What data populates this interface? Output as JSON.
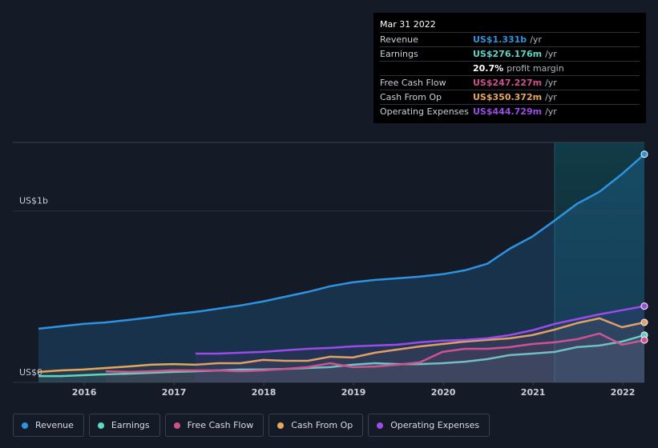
{
  "chart_data": {
    "type": "line",
    "x": [
      2015.49,
      2015.74,
      2015.99,
      2016.24,
      2016.49,
      2016.74,
      2016.99,
      2017.24,
      2017.49,
      2017.74,
      2017.99,
      2018.24,
      2018.49,
      2018.74,
      2018.99,
      2019.24,
      2019.49,
      2019.74,
      2019.99,
      2020.24,
      2020.49,
      2020.74,
      2020.99,
      2021.24,
      2021.49,
      2021.74,
      2021.99,
      2022.24
    ],
    "series": [
      {
        "name": "Revenue",
        "color": "#2e93e0",
        "values": [
          0.313,
          0.327,
          0.341,
          0.35,
          0.364,
          0.379,
          0.397,
          0.411,
          0.43,
          0.449,
          0.472,
          0.5,
          0.528,
          0.561,
          0.584,
          0.598,
          0.607,
          0.617,
          0.631,
          0.654,
          0.692,
          0.78,
          0.85,
          0.944,
          1.042,
          1.112,
          1.215,
          1.331
        ]
      },
      {
        "name": "Earnings",
        "color": "#5ed6c8",
        "values": [
          0.037,
          0.037,
          0.042,
          0.047,
          0.051,
          0.056,
          0.061,
          0.065,
          0.07,
          0.075,
          0.075,
          0.079,
          0.084,
          0.089,
          0.103,
          0.112,
          0.107,
          0.107,
          0.112,
          0.121,
          0.136,
          0.159,
          0.168,
          0.178,
          0.206,
          0.215,
          0.238,
          0.276
        ]
      },
      {
        "name": "Free Cash Flow",
        "color": "#d0508f",
        "values": [
          null,
          null,
          null,
          0.065,
          0.061,
          0.065,
          0.07,
          0.07,
          0.07,
          0.065,
          0.07,
          0.079,
          0.089,
          0.112,
          0.089,
          0.093,
          0.103,
          0.117,
          0.178,
          0.196,
          0.196,
          0.206,
          0.224,
          0.234,
          0.252,
          0.285,
          0.22,
          0.247
        ]
      },
      {
        "name": "Cash From Op",
        "color": "#e6a75d",
        "values": [
          0.061,
          0.07,
          0.075,
          0.084,
          0.093,
          0.103,
          0.107,
          0.103,
          0.112,
          0.112,
          0.131,
          0.126,
          0.126,
          0.15,
          0.145,
          0.173,
          0.192,
          0.21,
          0.224,
          0.238,
          0.248,
          0.257,
          0.276,
          0.308,
          0.346,
          0.374,
          0.322,
          0.35
        ]
      },
      {
        "name": "Operating Expenses",
        "color": "#9b4ce8",
        "values": [
          null,
          null,
          null,
          null,
          null,
          null,
          null,
          0.168,
          0.168,
          0.173,
          0.178,
          0.187,
          0.196,
          0.201,
          0.21,
          0.215,
          0.22,
          0.234,
          0.243,
          0.248,
          0.257,
          0.276,
          0.304,
          0.341,
          0.369,
          0.397,
          0.421,
          0.445
        ]
      }
    ],
    "xlim": [
      2015.49,
      2022.24
    ],
    "xticks": [
      2016,
      2017,
      2018,
      2019,
      2020,
      2021,
      2022
    ],
    "ylim": [
      0,
      1.4
    ],
    "yticks": [
      {
        "value": 0,
        "label": "US$0"
      },
      {
        "value": 1,
        "label": "US$1b"
      }
    ],
    "highlight": [
      2021.24,
      2022.24
    ],
    "grid": true
  },
  "tooltip": {
    "date": "Mar 31 2022",
    "rows": [
      {
        "label": "Revenue",
        "value": "US$1.331b",
        "unit": "/yr",
        "color": "#2e93e0"
      },
      {
        "label": "Earnings",
        "value": "US$276.176m",
        "unit": "/yr",
        "color": "#5ed6c8"
      },
      {
        "value": "20.7%",
        "unit": "profit margin",
        "color": "#ffffff"
      },
      {
        "label": "Free Cash Flow",
        "value": "US$247.227m",
        "unit": "/yr",
        "color": "#d0508f"
      },
      {
        "label": "Cash From Op",
        "value": "US$350.372m",
        "unit": "/yr",
        "color": "#e6a75d"
      },
      {
        "label": "Operating Expenses",
        "value": "US$444.729m",
        "unit": "/yr",
        "color": "#9b4ce8"
      }
    ]
  }
}
